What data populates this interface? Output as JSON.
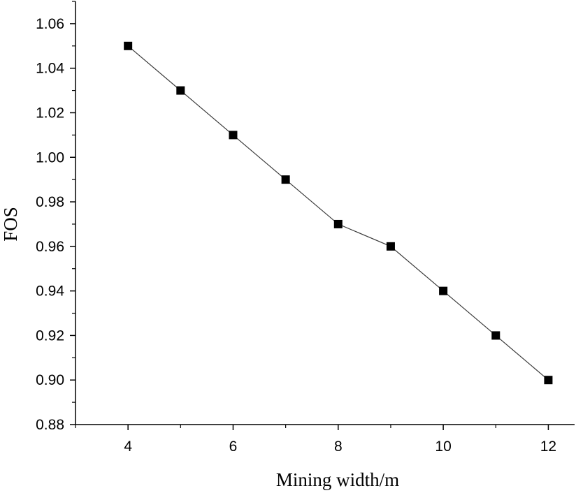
{
  "chart_data": {
    "type": "line",
    "title": "",
    "xlabel": "Mining width/m",
    "ylabel": "FOS",
    "x": [
      4,
      5,
      6,
      7,
      8,
      9,
      10,
      11,
      12
    ],
    "series": [
      {
        "values": [
          1.05,
          1.03,
          1.01,
          0.99,
          0.97,
          0.96,
          0.94,
          0.92,
          0.9
        ],
        "marker": "square",
        "color": "#000000"
      }
    ],
    "xlim": [
      3,
      12.5
    ],
    "ylim": [
      0.88,
      1.07
    ],
    "x_ticks": [
      4,
      6,
      8,
      10,
      12
    ],
    "x_tick_labels": [
      "4",
      "6",
      "8",
      "10",
      "12"
    ],
    "y_ticks": [
      0.88,
      0.9,
      0.92,
      0.94,
      0.96,
      0.98,
      1.0,
      1.02,
      1.04,
      1.06
    ],
    "y_tick_labels": [
      "0.88",
      "0.90",
      "0.92",
      "0.94",
      "0.96",
      "0.98",
      "1.00",
      "1.02",
      "1.04",
      "1.06"
    ],
    "grid": false,
    "legend": "none"
  }
}
